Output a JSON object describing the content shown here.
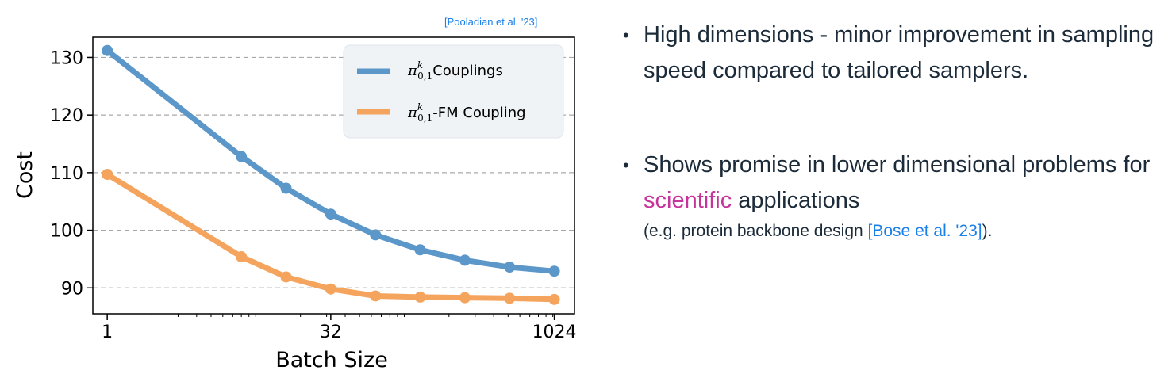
{
  "citation": "[Pooladian et al. '23]",
  "bullets": {
    "b1": "High dimensions - minor improvement in sampling speed compared to tailored samplers.",
    "b2_before": "Shows promise in lower dimensional problems for ",
    "b2_highlight": "scientific",
    "b2_after": " applications",
    "b2_note_before": "(e.g. protein backbone design ",
    "b2_note_ref": "[Bose et al. '23]",
    "b2_note_after": ")."
  },
  "colors": {
    "series1": "#5b97c9",
    "series2": "#f5a45e",
    "highlight": "#c7339a",
    "link": "#1a7fe8"
  },
  "chart_data": {
    "type": "line",
    "xlabel": "Batch Size",
    "ylabel": "Cost",
    "x_scale": "log2",
    "xlim": [
      0.8,
      1400
    ],
    "ylim": [
      85.5,
      133.5
    ],
    "xticks": [
      1,
      32,
      1024
    ],
    "xtick_labels": [
      "1",
      "32",
      "1024"
    ],
    "yticks": [
      90,
      100,
      110,
      120,
      130
    ],
    "ytick_labels": [
      "90",
      "100",
      "110",
      "120",
      "130"
    ],
    "grid": "horizontal dashed",
    "legend_position": "top-right",
    "series": [
      {
        "name": "Couplings",
        "x": [
          1,
          8,
          16,
          32,
          64,
          128,
          256,
          512,
          1024
        ],
        "values": [
          131.2,
          112.8,
          107.3,
          102.8,
          99.2,
          96.6,
          94.8,
          93.6,
          92.9
        ]
      },
      {
        "name": "-FM Coupling",
        "x": [
          1,
          8,
          16,
          32,
          64,
          128,
          256,
          512,
          1024
        ],
        "values": [
          109.7,
          95.4,
          91.9,
          89.8,
          88.6,
          88.4,
          88.3,
          88.2,
          88.0
        ]
      }
    ]
  }
}
